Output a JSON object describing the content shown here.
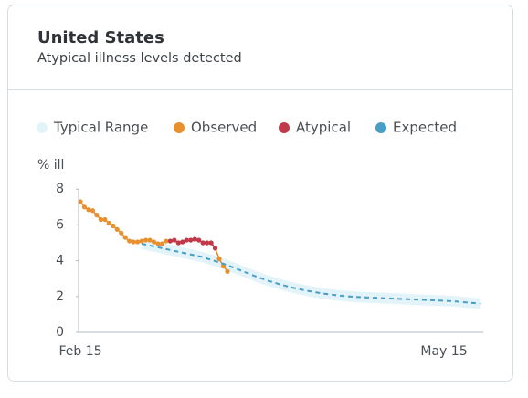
{
  "header": {
    "title": "United States",
    "subtitle": "Atypical illness levels detected"
  },
  "chart_data": {
    "type": "line",
    "y_label": "% ill",
    "ylim": [
      0,
      8
    ],
    "yticks": [
      0,
      2,
      4,
      6,
      8
    ],
    "categories": [
      "Feb 15",
      null,
      null,
      null,
      null,
      null,
      null,
      null,
      null,
      null,
      null,
      null,
      null,
      null,
      null,
      null,
      null,
      null,
      null,
      null,
      null,
      null,
      null,
      null,
      null,
      null,
      null,
      null,
      null,
      null,
      null,
      null,
      null,
      null,
      null,
      null,
      null,
      null,
      null,
      null,
      null,
      null,
      null,
      null,
      null,
      null,
      null,
      null,
      null,
      null,
      null,
      null,
      null,
      null,
      null,
      null,
      null,
      null,
      null,
      null,
      null,
      null,
      null,
      null,
      null,
      null,
      null,
      null,
      null,
      null,
      null,
      null,
      null,
      null,
      null,
      null,
      null,
      null,
      null,
      null,
      null,
      null,
      null,
      null,
      null,
      null,
      null,
      null,
      null,
      "May 15",
      null,
      null,
      null,
      null,
      null,
      null,
      null,
      null,
      null
    ],
    "series": [
      {
        "name": "Typical Range",
        "color": "#e3f3fa",
        "style": "band",
        "high": [
          null,
          null,
          null,
          null,
          null,
          null,
          null,
          null,
          null,
          null,
          null,
          null,
          null,
          null,
          null,
          5.25,
          5.2,
          5.15,
          5.1,
          5.05,
          5.0,
          4.95,
          4.9,
          4.85,
          4.8,
          4.75,
          4.7,
          4.65,
          4.6,
          4.55,
          4.5,
          4.42,
          4.35,
          4.28,
          4.2,
          4.13,
          4.05,
          3.96,
          3.87,
          3.78,
          3.69,
          3.6,
          3.51,
          3.42,
          3.34,
          3.26,
          3.18,
          3.11,
          3.04,
          2.97,
          2.91,
          2.85,
          2.79,
          2.74,
          2.69,
          2.64,
          2.6,
          2.56,
          2.52,
          2.48,
          2.45,
          2.42,
          2.39,
          2.36,
          2.34,
          2.32,
          2.3,
          2.28,
          2.27,
          2.26,
          2.25,
          2.24,
          2.23,
          2.22,
          2.21,
          2.2,
          2.19,
          2.18,
          2.17,
          2.16,
          2.15,
          2.14,
          2.13,
          2.12,
          2.11,
          2.1,
          2.09,
          2.08,
          2.07,
          2.06,
          2.05,
          2.04,
          2.02,
          2.0,
          1.98,
          1.96,
          1.94,
          1.92,
          1.9
        ],
        "low": [
          null,
          null,
          null,
          null,
          null,
          null,
          null,
          null,
          null,
          null,
          null,
          null,
          null,
          null,
          null,
          4.65,
          4.6,
          4.55,
          4.5,
          4.45,
          4.4,
          4.35,
          4.3,
          4.25,
          4.2,
          4.15,
          4.1,
          4.05,
          4.0,
          3.95,
          3.9,
          3.82,
          3.75,
          3.68,
          3.6,
          3.53,
          3.45,
          3.36,
          3.27,
          3.18,
          3.09,
          3.0,
          2.91,
          2.82,
          2.74,
          2.66,
          2.58,
          2.51,
          2.44,
          2.37,
          2.31,
          2.25,
          2.19,
          2.14,
          2.09,
          2.04,
          2.0,
          1.96,
          1.92,
          1.88,
          1.85,
          1.82,
          1.79,
          1.76,
          1.74,
          1.72,
          1.7,
          1.68,
          1.67,
          1.66,
          1.65,
          1.64,
          1.63,
          1.62,
          1.61,
          1.6,
          1.59,
          1.58,
          1.57,
          1.56,
          1.55,
          1.54,
          1.53,
          1.52,
          1.51,
          1.5,
          1.49,
          1.48,
          1.47,
          1.46,
          1.45,
          1.44,
          1.42,
          1.4,
          1.38,
          1.36,
          1.34,
          1.32,
          1.3
        ]
      },
      {
        "name": "Observed",
        "color": "#e8902e",
        "style": "line-dots",
        "values": [
          7.3,
          7.0,
          6.85,
          6.8,
          6.55,
          6.3,
          6.3,
          6.1,
          5.95,
          5.75,
          5.55,
          5.3,
          5.1,
          5.05,
          5.05,
          5.1,
          5.15,
          5.15,
          5.05,
          4.95,
          4.95,
          5.1,
          5.1,
          5.15,
          5.0,
          5.05,
          5.15,
          5.15,
          5.2,
          5.15,
          5.0,
          5.0,
          5.0,
          4.7,
          4.1,
          3.7,
          3.4,
          null,
          null,
          null,
          null,
          null,
          null,
          null,
          null,
          null,
          null,
          null,
          null,
          null,
          null,
          null,
          null,
          null,
          null,
          null,
          null,
          null,
          null,
          null,
          null,
          null,
          null,
          null,
          null,
          null,
          null,
          null,
          null,
          null,
          null,
          null,
          null,
          null,
          null,
          null,
          null,
          null,
          null,
          null,
          null,
          null,
          null,
          null,
          null,
          null,
          null,
          null,
          null,
          null,
          null,
          null,
          null,
          null,
          null,
          null,
          null,
          null,
          null
        ]
      },
      {
        "name": "Atypical",
        "color": "#c0394a",
        "style": "line-dots",
        "values": [
          null,
          null,
          null,
          null,
          null,
          null,
          null,
          null,
          null,
          null,
          null,
          null,
          null,
          null,
          null,
          null,
          null,
          null,
          null,
          null,
          null,
          null,
          5.1,
          5.15,
          5.0,
          5.05,
          5.15,
          5.15,
          5.2,
          5.15,
          5.0,
          5.0,
          5.0,
          4.7,
          null,
          null,
          null,
          null,
          null,
          null,
          null,
          null,
          null,
          null,
          null,
          null,
          null,
          null,
          null,
          null,
          null,
          null,
          null,
          null,
          null,
          null,
          null,
          null,
          null,
          null,
          null,
          null,
          null,
          null,
          null,
          null,
          null,
          null,
          null,
          null,
          null,
          null,
          null,
          null,
          null,
          null,
          null,
          null,
          null,
          null,
          null,
          null,
          null,
          null,
          null,
          null,
          null,
          null,
          null,
          null,
          null,
          null,
          null,
          null,
          null,
          null,
          null,
          null,
          null
        ]
      },
      {
        "name": "Expected",
        "color": "#4a9ec4",
        "style": "dashed",
        "values": [
          null,
          null,
          null,
          null,
          null,
          null,
          null,
          null,
          null,
          null,
          null,
          null,
          null,
          null,
          null,
          4.95,
          4.9,
          4.85,
          4.8,
          4.75,
          4.7,
          4.65,
          4.6,
          4.55,
          4.5,
          4.45,
          4.4,
          4.35,
          4.3,
          4.25,
          4.2,
          4.12,
          4.05,
          3.98,
          3.9,
          3.83,
          3.75,
          3.66,
          3.57,
          3.48,
          3.39,
          3.3,
          3.21,
          3.12,
          3.04,
          2.96,
          2.88,
          2.81,
          2.74,
          2.67,
          2.61,
          2.55,
          2.49,
          2.44,
          2.39,
          2.34,
          2.3,
          2.26,
          2.22,
          2.18,
          2.15,
          2.12,
          2.09,
          2.06,
          2.04,
          2.02,
          2.0,
          1.98,
          1.97,
          1.96,
          1.95,
          1.94,
          1.93,
          1.92,
          1.91,
          1.9,
          1.89,
          1.88,
          1.87,
          1.86,
          1.85,
          1.84,
          1.83,
          1.82,
          1.81,
          1.8,
          1.79,
          1.78,
          1.77,
          1.76,
          1.75,
          1.74,
          1.72,
          1.7,
          1.68,
          1.66,
          1.64,
          1.62,
          1.6
        ]
      }
    ]
  }
}
